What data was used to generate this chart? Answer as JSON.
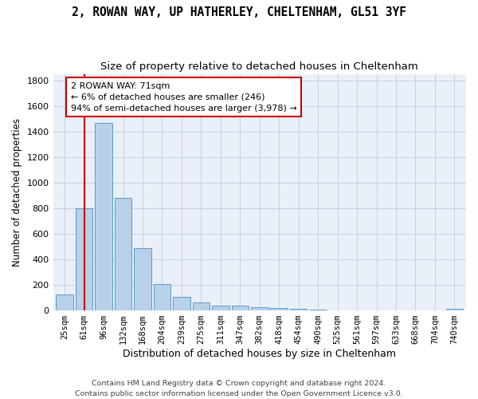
{
  "title": "2, ROWAN WAY, UP HATHERLEY, CHELTENHAM, GL51 3YF",
  "subtitle": "Size of property relative to detached houses in Cheltenham",
  "xlabel": "Distribution of detached houses by size in Cheltenham",
  "ylabel": "Number of detached properties",
  "bar_labels": [
    "25sqm",
    "61sqm",
    "96sqm",
    "132sqm",
    "168sqm",
    "204sqm",
    "239sqm",
    "275sqm",
    "311sqm",
    "347sqm",
    "382sqm",
    "418sqm",
    "454sqm",
    "490sqm",
    "525sqm",
    "561sqm",
    "597sqm",
    "633sqm",
    "668sqm",
    "704sqm",
    "740sqm"
  ],
  "bar_values": [
    125,
    800,
    1470,
    880,
    490,
    205,
    105,
    65,
    40,
    35,
    25,
    20,
    12,
    5,
    2,
    2,
    2,
    1,
    1,
    1,
    13
  ],
  "bar_color": "#b8d0e8",
  "bar_edge_color": "#5a9bc9",
  "vline_x": 1,
  "vline_color": "#cc0000",
  "annotation_line1": "2 ROWAN WAY: 71sqm",
  "annotation_line2": "← 6% of detached houses are smaller (246)",
  "annotation_line3": "94% of semi-detached houses are larger (3,978) →",
  "annotation_box_color": "#ffffff",
  "annotation_box_edge": "#cc0000",
  "ylim": [
    0,
    1850
  ],
  "yticks": [
    0,
    200,
    400,
    600,
    800,
    1000,
    1200,
    1400,
    1600,
    1800
  ],
  "footer_line1": "Contains HM Land Registry data © Crown copyright and database right 2024.",
  "footer_line2": "Contains public sector information licensed under the Open Government Licence v3.0.",
  "background_color": "#eaf0f8",
  "grid_color": "#c8d0dc"
}
